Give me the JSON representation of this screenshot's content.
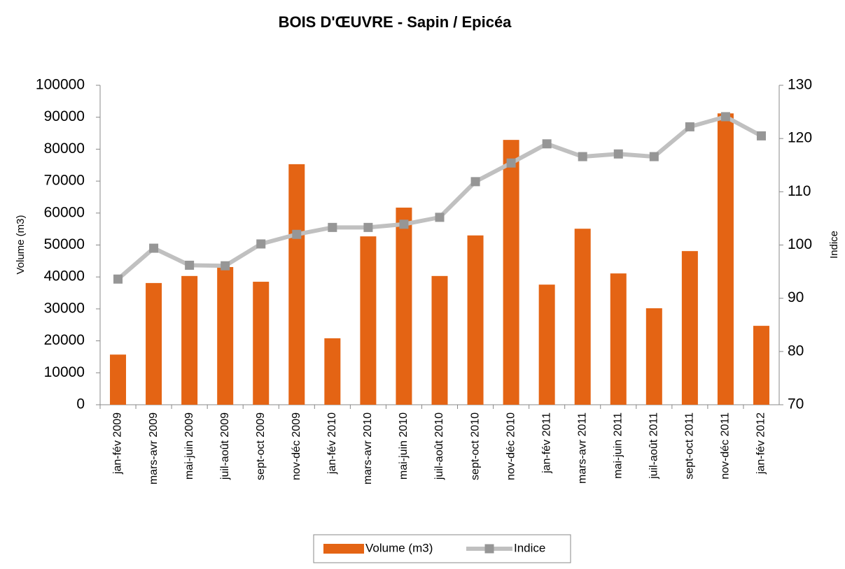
{
  "chart_data": {
    "type": "bar_line",
    "title": "BOIS D'ŒUVRE - Sapin / Epicéa",
    "y_label": "Volume (m3)",
    "y2_label": "Indice",
    "categories": [
      "jan-fév 2009",
      "mars-avr 2009",
      "mai-juin 2009",
      "juil-août 2009",
      "sept-oct 2009",
      "nov-déc 2009",
      "jan-fév 2010",
      "mars-avr 2010",
      "mai-juin 2010",
      "juil-août 2010",
      "sept-oct 2010",
      "nov-déc 2010",
      "jan-fév 2011",
      "mars-avr 2011",
      "mai-juin 2011",
      "juil-août 2011",
      "sept-oct 2011",
      "nov-déc 2011",
      "jan-fév 2012"
    ],
    "series": [
      {
        "name": "Volume (m3)",
        "type": "bar",
        "color": "#e46414",
        "values": [
          15700,
          38100,
          40300,
          43100,
          38500,
          75300,
          20800,
          52700,
          61700,
          40300,
          53000,
          82900,
          37600,
          55100,
          41100,
          30200,
          48100,
          91200,
          24700
        ]
      },
      {
        "name": "Indice",
        "type": "line",
        "axis": "y2",
        "color": "#c0c0c0",
        "marker_color": "#969696",
        "values": [
          93.6,
          99.4,
          96.2,
          96.1,
          100.2,
          102,
          103.3,
          103.3,
          103.9,
          105.2,
          111.9,
          115.4,
          119,
          116.6,
          117.1,
          116.6,
          122.2,
          124.1,
          120.5
        ]
      }
    ],
    "ylim": [
      0,
      100000
    ],
    "yticks": [
      0,
      10000,
      20000,
      30000,
      40000,
      50000,
      60000,
      70000,
      80000,
      90000,
      100000
    ],
    "y2lim": [
      70,
      130
    ],
    "y2ticks": [
      70,
      80,
      90,
      100,
      110,
      120,
      130
    ],
    "legend": "bottom"
  }
}
